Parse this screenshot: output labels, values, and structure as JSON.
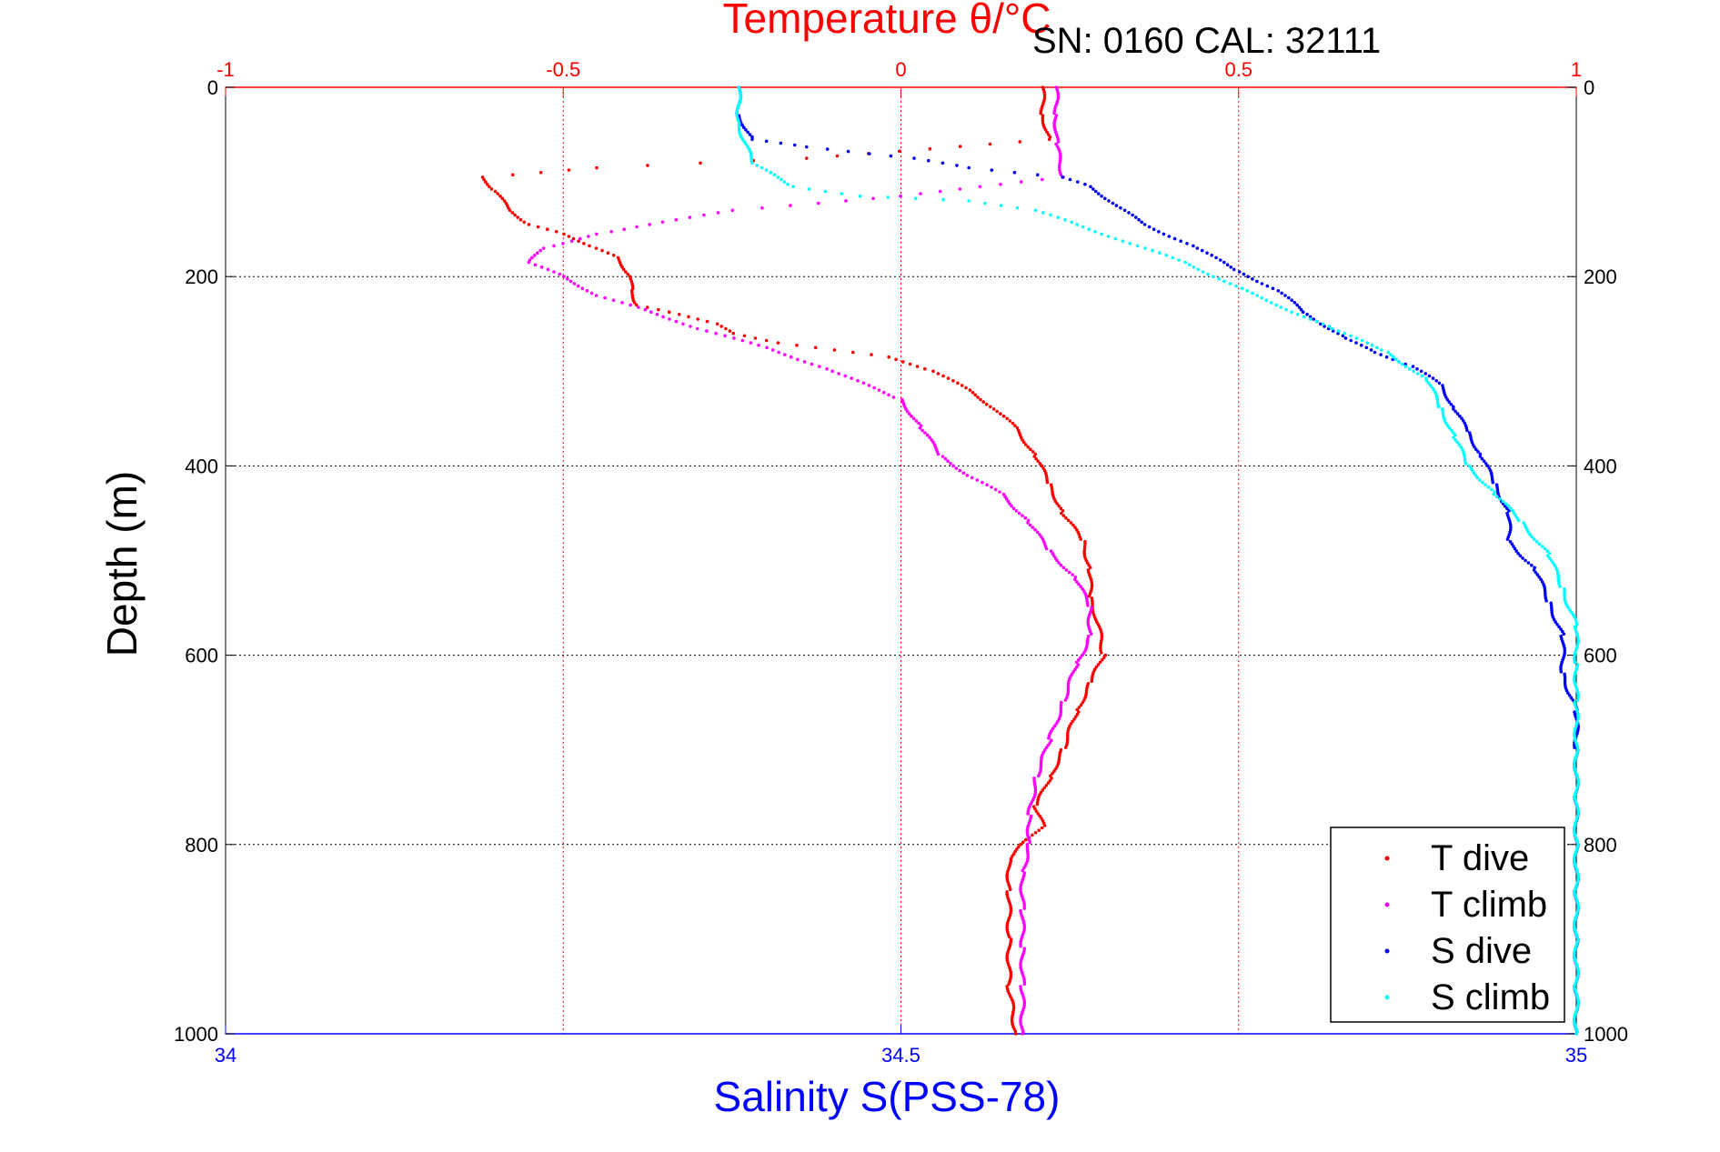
{
  "chart_data": {
    "type": "scatter",
    "title": "Temperature θ/°C",
    "subtitle": "SN: 0160  CAL: 32111",
    "xlabel": "Salinity S(PSS-78)",
    "ylabel": "Depth (m)",
    "x_temperature": {
      "label": "Temperature θ/°C",
      "lim": [
        -1,
        1
      ],
      "ticks": [
        -1,
        -0.5,
        0,
        0.5,
        1
      ],
      "tick_labels": [
        "-1",
        "-0.5",
        "0",
        "0.5",
        "1"
      ],
      "color": "#ff0000"
    },
    "x_salinity": {
      "label": "Salinity S(PSS-78)",
      "lim": [
        34,
        35
      ],
      "ticks": [
        34,
        34.5,
        35
      ],
      "tick_labels": [
        "34",
        "34.5",
        "35"
      ],
      "color": "#0000ff"
    },
    "y_depth": {
      "lim": [
        0,
        1000
      ],
      "reversed": true,
      "ticks": [
        0,
        200,
        400,
        600,
        800,
        1000
      ],
      "tick_labels": [
        "0",
        "200",
        "400",
        "600",
        "800",
        "1000"
      ]
    },
    "grid": true,
    "legend": {
      "position": "bottom-right"
    },
    "series": [
      {
        "name": "T dive",
        "axis": "temperature",
        "color": "#ff0000",
        "marker": "triangle-down",
        "points": [
          [
            0.21,
            0
          ],
          [
            0.21,
            30
          ],
          [
            0.22,
            55
          ],
          [
            -0.14,
            75
          ],
          [
            -0.45,
            85
          ],
          [
            -0.62,
            95
          ],
          [
            -0.6,
            110
          ],
          [
            -0.58,
            130
          ],
          [
            -0.55,
            145
          ],
          [
            -0.5,
            155
          ],
          [
            -0.45,
            170
          ],
          [
            -0.42,
            180
          ],
          [
            -0.4,
            200
          ],
          [
            -0.4,
            215
          ],
          [
            -0.39,
            230
          ],
          [
            -0.33,
            240
          ],
          [
            -0.27,
            250
          ],
          [
            -0.25,
            260
          ],
          [
            -0.18,
            270
          ],
          [
            -0.02,
            285
          ],
          [
            0.05,
            300
          ],
          [
            0.1,
            320
          ],
          [
            0.14,
            340
          ],
          [
            0.17,
            360
          ],
          [
            0.2,
            390
          ],
          [
            0.22,
            420
          ],
          [
            0.24,
            450
          ],
          [
            0.27,
            480
          ],
          [
            0.28,
            510
          ],
          [
            0.28,
            540
          ],
          [
            0.29,
            560
          ],
          [
            0.3,
            600
          ],
          [
            0.28,
            630
          ],
          [
            0.26,
            660
          ],
          [
            0.24,
            700
          ],
          [
            0.22,
            730
          ],
          [
            0.2,
            760
          ],
          [
            0.21,
            780
          ],
          [
            0.18,
            800
          ],
          [
            0.16,
            815
          ],
          [
            0.16,
            850
          ],
          [
            0.16,
            900
          ],
          [
            0.16,
            950
          ],
          [
            0.17,
            1000
          ]
        ]
      },
      {
        "name": "T climb",
        "axis": "temperature",
        "color": "#ff00ff",
        "marker": "triangle-up",
        "points": [
          [
            0.23,
            0
          ],
          [
            0.23,
            30
          ],
          [
            0.23,
            60
          ],
          [
            0.24,
            95
          ],
          [
            0.0,
            115
          ],
          [
            -0.25,
            130
          ],
          [
            -0.45,
            155
          ],
          [
            -0.53,
            170
          ],
          [
            -0.55,
            185
          ],
          [
            -0.5,
            200
          ],
          [
            -0.45,
            220
          ],
          [
            -0.38,
            235
          ],
          [
            -0.3,
            255
          ],
          [
            -0.2,
            275
          ],
          [
            -0.1,
            300
          ],
          [
            0.0,
            330
          ],
          [
            0.03,
            360
          ],
          [
            0.06,
            390
          ],
          [
            0.1,
            410
          ],
          [
            0.15,
            430
          ],
          [
            0.19,
            460
          ],
          [
            0.22,
            490
          ],
          [
            0.26,
            520
          ],
          [
            0.28,
            550
          ],
          [
            0.28,
            580
          ],
          [
            0.26,
            610
          ],
          [
            0.24,
            650
          ],
          [
            0.22,
            690
          ],
          [
            0.2,
            730
          ],
          [
            0.19,
            770
          ],
          [
            0.19,
            800
          ],
          [
            0.18,
            830
          ],
          [
            0.18,
            870
          ],
          [
            0.18,
            910
          ],
          [
            0.18,
            950
          ],
          [
            0.18,
            1000
          ]
        ]
      },
      {
        "name": "S dive",
        "axis": "salinity",
        "color": "#0000ff",
        "marker": "triangle-down",
        "points": [
          [
            34.38,
            0
          ],
          [
            34.38,
            30
          ],
          [
            34.39,
            55
          ],
          [
            34.43,
            63
          ],
          [
            34.51,
            75
          ],
          [
            34.55,
            85
          ],
          [
            34.62,
            95
          ],
          [
            34.64,
            105
          ],
          [
            34.66,
            125
          ],
          [
            34.68,
            145
          ],
          [
            34.72,
            170
          ],
          [
            34.75,
            195
          ],
          [
            34.78,
            215
          ],
          [
            34.8,
            240
          ],
          [
            34.83,
            265
          ],
          [
            34.85,
            280
          ],
          [
            34.88,
            295
          ],
          [
            34.9,
            315
          ],
          [
            34.91,
            340
          ],
          [
            34.92,
            365
          ],
          [
            34.93,
            390
          ],
          [
            34.94,
            420
          ],
          [
            34.95,
            450
          ],
          [
            34.95,
            480
          ],
          [
            34.97,
            510
          ],
          [
            34.98,
            545
          ],
          [
            34.99,
            580
          ],
          [
            34.99,
            620
          ],
          [
            35.0,
            660
          ],
          [
            35.0,
            700
          ],
          [
            35.0,
            750
          ],
          [
            35.0,
            800
          ],
          [
            35.0,
            850
          ],
          [
            35.0,
            900
          ],
          [
            35.0,
            950
          ],
          [
            35.0,
            1000
          ]
        ]
      },
      {
        "name": "S climb",
        "axis": "salinity",
        "color": "#00ffff",
        "marker": "triangle-up",
        "points": [
          [
            34.38,
            0
          ],
          [
            34.38,
            40
          ],
          [
            34.39,
            80
          ],
          [
            34.42,
            105
          ],
          [
            34.47,
            115
          ],
          [
            34.55,
            120
          ],
          [
            34.6,
            130
          ],
          [
            34.63,
            145
          ],
          [
            34.67,
            165
          ],
          [
            34.71,
            185
          ],
          [
            34.74,
            205
          ],
          [
            34.77,
            225
          ],
          [
            34.82,
            255
          ],
          [
            34.86,
            280
          ],
          [
            34.89,
            310
          ],
          [
            34.9,
            340
          ],
          [
            34.91,
            370
          ],
          [
            34.92,
            400
          ],
          [
            34.94,
            430
          ],
          [
            34.96,
            460
          ],
          [
            34.98,
            495
          ],
          [
            34.99,
            530
          ],
          [
            35.0,
            570
          ],
          [
            35.0,
            610
          ],
          [
            35.0,
            650
          ],
          [
            35.0,
            700
          ],
          [
            35.0,
            750
          ],
          [
            35.0,
            800
          ],
          [
            35.0,
            850
          ],
          [
            35.0,
            900
          ],
          [
            35.0,
            950
          ],
          [
            35.0,
            1000
          ]
        ]
      }
    ]
  }
}
